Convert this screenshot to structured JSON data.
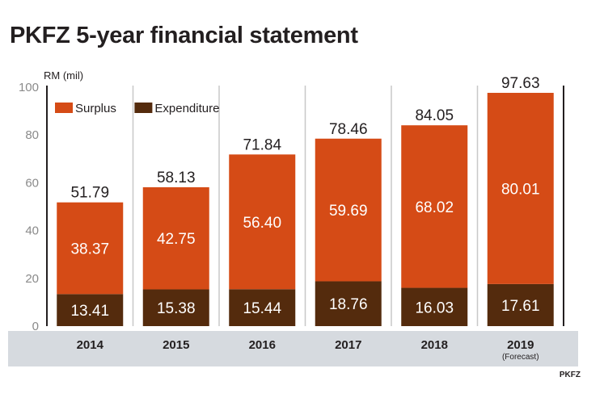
{
  "chart_data": {
    "type": "bar",
    "stacked": true,
    "title": "PKFZ 5-year financial statement",
    "unit_label": "RM (mil)",
    "categories": [
      "2014",
      "2015",
      "2016",
      "2017",
      "2018",
      "2019"
    ],
    "category_notes": [
      "",
      "",
      "",
      "",
      "",
      "(Forecast)"
    ],
    "series": [
      {
        "name": "Expenditure",
        "color": "#542b0d",
        "values": [
          13.41,
          15.38,
          15.44,
          18.76,
          16.03,
          17.61
        ]
      },
      {
        "name": "Surplus",
        "color": "#d54b16",
        "values": [
          38.37,
          42.75,
          56.4,
          59.69,
          68.02,
          80.01
        ]
      }
    ],
    "totals": [
      51.79,
      58.13,
      71.84,
      78.46,
      84.05,
      97.63
    ],
    "value_labels": {
      "Expenditure": [
        "13.41",
        "15.38",
        "15.44",
        "18.76",
        "16.03",
        "17.61"
      ],
      "Surplus": [
        "38.37",
        "42.75",
        "56.40",
        "59.69",
        "68.02",
        "80.01"
      ],
      "totals": [
        "51.79",
        "58.13",
        "71.84",
        "78.46",
        "84.05",
        "97.63"
      ]
    },
    "ylim": [
      0,
      100
    ],
    "yticks": [
      0,
      20,
      40,
      60,
      80,
      100
    ],
    "legend": {
      "placement": "top-left",
      "order": [
        "Surplus",
        "Expenditure"
      ]
    },
    "xlabel": "",
    "ylabel": ""
  },
  "source": "PKFZ"
}
